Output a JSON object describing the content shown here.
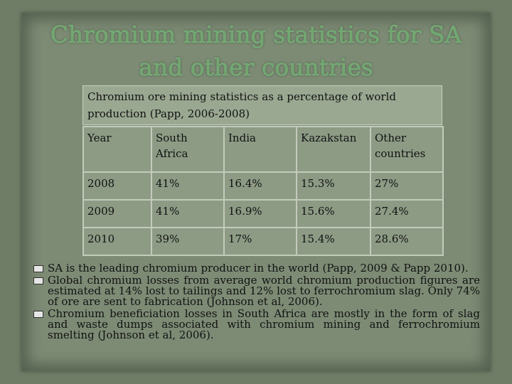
{
  "slide": {
    "title": "Chromium mining statistics for SA and other countries",
    "caption": "Chromium  ore mining statistics as  a percentage of world production  (Papp, 2006-2008)",
    "table": {
      "headers": [
        "Year",
        "South Africa",
        "India",
        "Kazakstan",
        "Other countries"
      ],
      "rows": [
        [
          "2008",
          "41%",
          "16.4%",
          "15.3%",
          "27%"
        ],
        [
          "2009",
          "41%",
          "16.9%",
          "15.6%",
          "27.4%"
        ],
        [
          "2010",
          "39%",
          "17%",
          "15.4%",
          "28.6%"
        ]
      ]
    },
    "bullets": [
      "SA  is the leading chromium producer  in the world (Papp, 2009 & Papp 2010).",
      "Global chromium losses from average world chromium production figures are estimated at 14% lost to tailings and 12% lost to ferrochromium slag. Only 74% of ore are sent to fabrication (Johnson et al, 2006).",
      "Chromium beneficiation losses in South Africa are mostly in the form of slag and waste dumps associated with chromium mining and ferrochromium smelting (Johnson et al, 2006)."
    ]
  },
  "colors": {
    "title": "#6fa86f",
    "background": "#7d8b75",
    "table_cell": "#8d9b85"
  }
}
